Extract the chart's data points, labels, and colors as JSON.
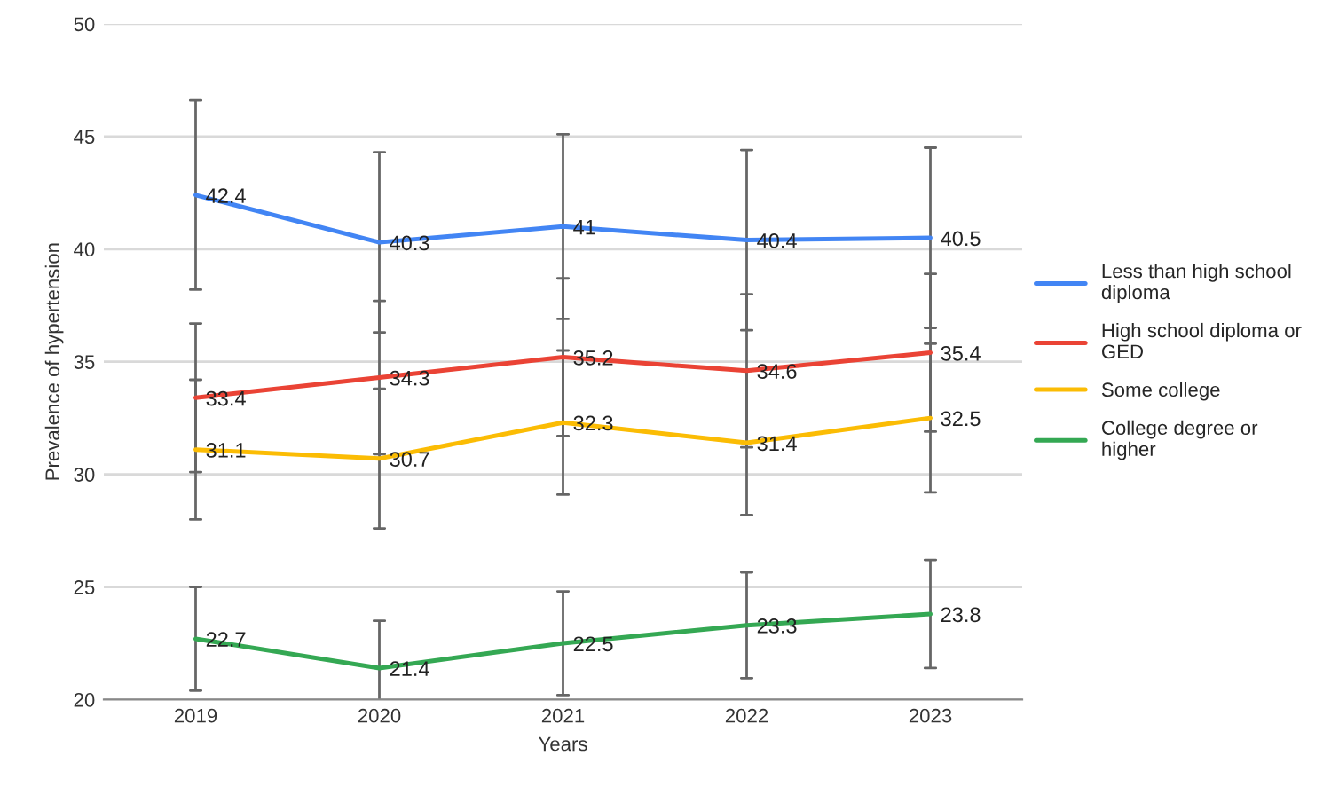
{
  "chart_data": {
    "type": "line",
    "xlabel": "Years",
    "ylabel": "Prevalence of hypertension",
    "categories": [
      "2019",
      "2020",
      "2021",
      "2022",
      "2023"
    ],
    "series": [
      {
        "name": "Less than high school\ndiploma",
        "color": "#4285f4",
        "values": [
          42.4,
          40.3,
          41,
          40.4,
          40.5
        ],
        "errors": [
          4.2,
          4.0,
          4.1,
          4.0,
          4.0
        ]
      },
      {
        "name": "High school diploma or\nGED",
        "color": "#ea4335",
        "values": [
          33.4,
          34.3,
          35.2,
          34.6,
          35.4
        ],
        "errors": [
          3.3,
          3.4,
          3.5,
          3.4,
          3.5
        ]
      },
      {
        "name": "Some college",
        "color": "#fbbc04",
        "values": [
          31.1,
          30.7,
          32.3,
          31.4,
          32.5
        ],
        "errors": [
          3.1,
          3.1,
          3.2,
          3.2,
          3.3
        ]
      },
      {
        "name": "College degree or\nhigher",
        "color": "#34a853",
        "values": [
          22.7,
          21.4,
          22.5,
          23.3,
          23.8
        ],
        "errors": [
          2.3,
          2.1,
          2.3,
          2.35,
          2.4
        ]
      }
    ],
    "ylim": [
      20,
      50
    ],
    "yticks": [
      20,
      25,
      30,
      35,
      40,
      45,
      50
    ],
    "grid": "y",
    "legend": "right",
    "data_labels": true,
    "marker": "none",
    "line_style": "solid"
  }
}
